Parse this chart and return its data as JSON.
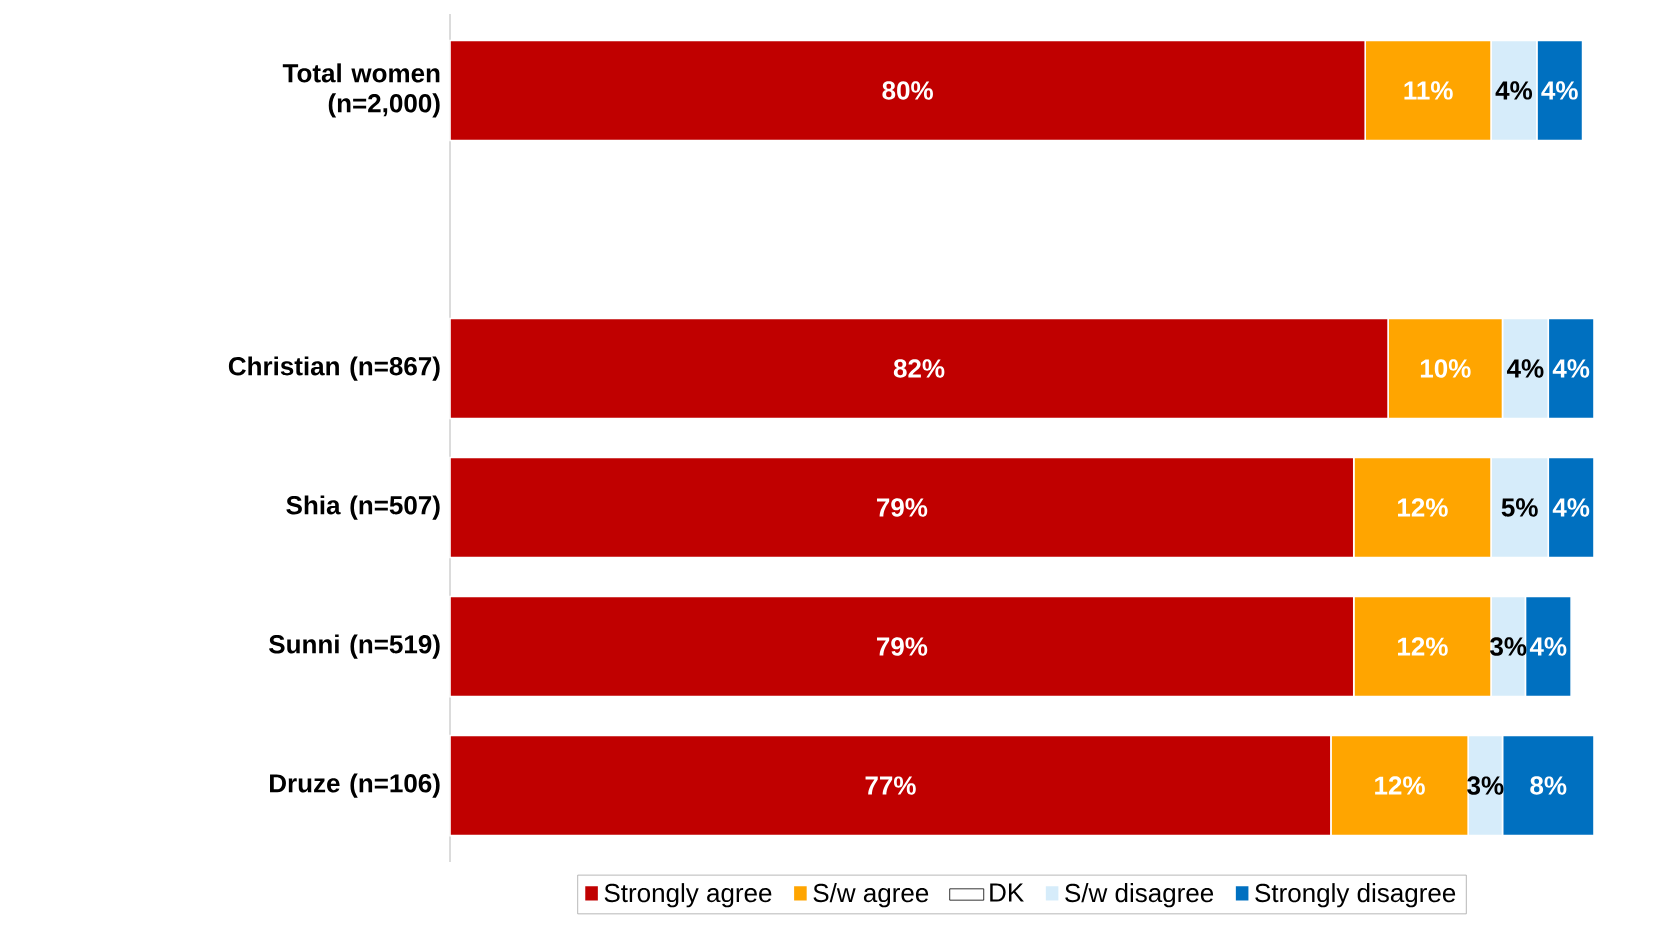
{
  "chart_data": {
    "type": "bar",
    "orientation": "horizontal",
    "stacked": true,
    "categories": [
      "Total women (n=2,000)",
      null,
      "Christian (n=867)",
      "Shia (n=507)",
      "Sunni (n=519)",
      "Druze (n=106)"
    ],
    "legend": "bottom",
    "series": [
      {
        "name": "Strongly agree",
        "color": "#c00000",
        "values": [
          80,
          null,
          82,
          79,
          79,
          77
        ],
        "value_labels": [
          "80%",
          null,
          "82%",
          "79%",
          "79%",
          "77%"
        ]
      },
      {
        "name": "S/w agree",
        "color": "#ffa500",
        "values": [
          11,
          null,
          10,
          12,
          12,
          12
        ],
        "value_labels": [
          "11%",
          null,
          "10%",
          "12%",
          "12%",
          "12%"
        ]
      },
      {
        "name": "DK",
        "color": "#ffffff",
        "values": [
          null,
          null,
          null,
          null,
          null,
          null
        ]
      },
      {
        "name": "S/w disagree",
        "color": "#d6ecfa",
        "values": [
          4,
          null,
          4,
          5,
          3,
          3
        ],
        "value_labels": [
          "4%",
          null,
          "4%",
          "5%",
          "3%",
          "3%"
        ]
      },
      {
        "name": "Strongly disagree",
        "color": "#0070c0",
        "values": [
          4,
          null,
          4,
          4,
          4,
          8
        ],
        "value_labels": [
          "4%",
          null,
          "4%",
          "4%",
          "4%",
          "8%"
        ]
      }
    ]
  }
}
